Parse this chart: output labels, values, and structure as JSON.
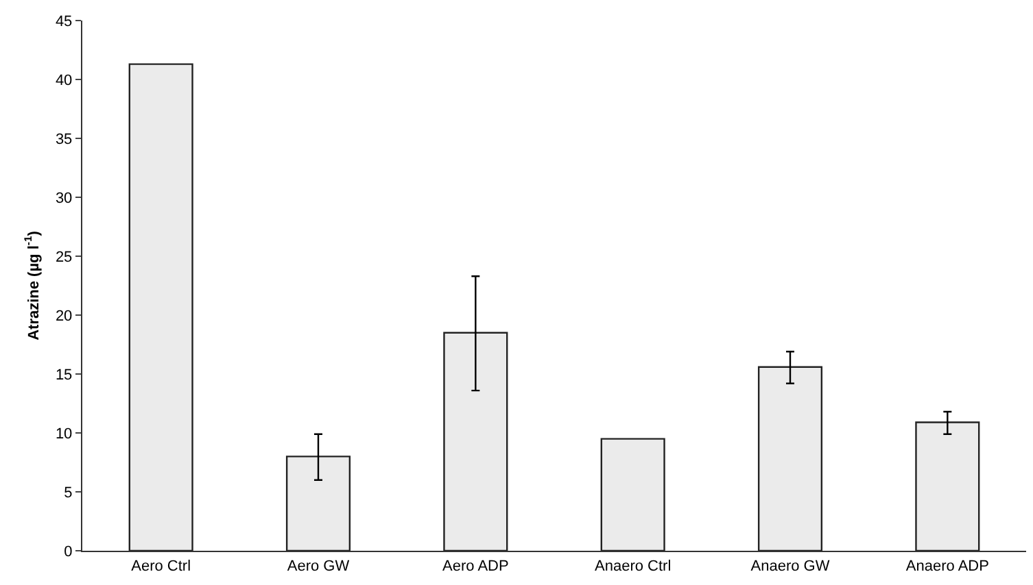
{
  "chart_data": {
    "type": "bar",
    "ylabel": "Atrazine (µg l$^{-1}$)",
    "categories": [
      "Aero Ctrl",
      "Aero GW",
      "Aero ADP",
      "Anaero Ctrl",
      "Anaero GW",
      "Anaero ADP"
    ],
    "values": [
      41.3,
      8.0,
      18.5,
      9.5,
      15.6,
      10.9
    ],
    "errors": [
      null,
      [
        6.0,
        9.9
      ],
      [
        13.6,
        23.3
      ],
      null,
      [
        14.2,
        16.9
      ],
      [
        9.9,
        11.8
      ]
    ],
    "color": "#ebebeb",
    "ylim": [
      0,
      45
    ],
    "yticks": [
      0,
      5,
      10,
      15,
      20,
      25,
      30,
      35,
      40,
      45
    ]
  }
}
